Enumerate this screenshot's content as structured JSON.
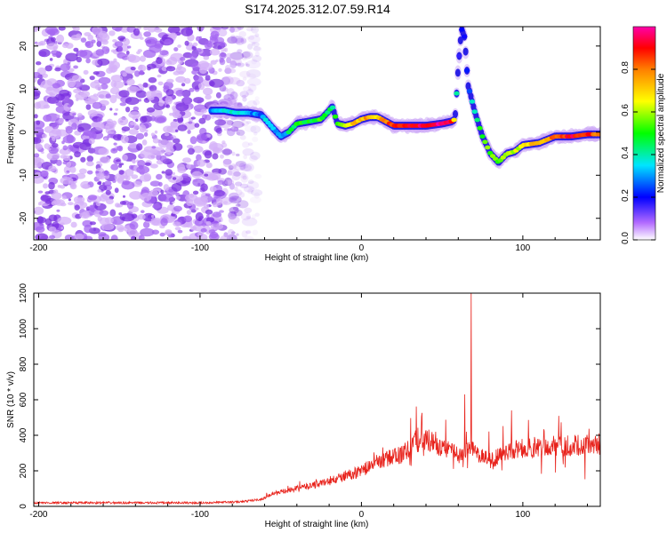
{
  "title": "S174.2025.312.07.59.R14",
  "chart_data": [
    {
      "type": "heatmap",
      "xlabel": "Height of straight line (km)",
      "ylabel": "Frequency (Hz)",
      "xlim": [
        -203,
        148
      ],
      "ylim": [
        -25,
        24.5
      ],
      "xticks": [
        -200,
        -100,
        0,
        100
      ],
      "yticks": [
        -20,
        -10,
        0,
        10,
        20
      ],
      "colorbar": {
        "label": "Normalized spectral amplitude",
        "range": [
          0,
          1
        ],
        "ticks": [
          0.0,
          0.2,
          0.4,
          0.6,
          0.8
        ],
        "tick_labels": [
          "0.0",
          "0.2",
          "0.4",
          "0.6",
          "0.8"
        ]
      },
      "noise_region_x": [
        -203,
        -75
      ],
      "ridge": {
        "x": [
          -93,
          -85,
          -78,
          -70,
          -62,
          -55,
          -50,
          -45,
          -40,
          -32,
          -25,
          -20,
          -18,
          -15,
          -10,
          -5,
          0,
          5,
          10,
          15,
          20,
          30,
          40,
          50,
          56,
          58,
          60,
          62,
          64,
          66,
          68,
          70,
          75,
          80,
          85,
          90,
          95,
          100,
          110,
          120,
          130,
          140,
          148
        ],
        "freq": [
          5,
          5,
          4.5,
          4.5,
          4,
          1,
          -1,
          0,
          2,
          2.5,
          3,
          5,
          6,
          2,
          1.5,
          2,
          3,
          3.5,
          3.5,
          2.5,
          1.5,
          1.5,
          1.5,
          2,
          2.5,
          3,
          15,
          24,
          22,
          11,
          8,
          5,
          -1,
          -5,
          -7,
          -5,
          -4.5,
          -3,
          -2.5,
          -1,
          -1,
          -0.5,
          -0.5
        ],
        "amplitude": [
          0.3,
          0.35,
          0.35,
          0.3,
          0.3,
          0.35,
          0.3,
          0.4,
          0.5,
          0.5,
          0.5,
          0.45,
          0.4,
          0.5,
          0.6,
          0.7,
          0.75,
          0.75,
          0.7,
          0.8,
          0.9,
          0.9,
          0.95,
          0.95,
          0.9,
          0.6,
          0.2,
          0.15,
          0.2,
          0.25,
          0.3,
          0.4,
          0.5,
          0.55,
          0.55,
          0.55,
          0.6,
          0.65,
          0.75,
          0.8,
          0.9,
          0.9,
          0.75
        ]
      }
    },
    {
      "type": "line",
      "xlabel": "Height of straight line (km)",
      "ylabel": "SNR (10 * v/v)",
      "xlim": [
        -203,
        148
      ],
      "ylim": [
        0,
        1200
      ],
      "xticks": [
        -200,
        -100,
        0,
        100
      ],
      "yticks": [
        0,
        200,
        400,
        600,
        800,
        1000,
        1200
      ],
      "color": "#e8221b",
      "series": [
        {
          "name": "SNR",
          "x": [
            -203,
            -150,
            -100,
            -75,
            -62,
            -55,
            -40,
            -30,
            -20,
            -10,
            0,
            10,
            20,
            25,
            30,
            40,
            50,
            60,
            65,
            68,
            70,
            72,
            75,
            80,
            90,
            100,
            110,
            120,
            130,
            140,
            148
          ],
          "y": [
            20,
            20,
            20,
            25,
            40,
            70,
            100,
            120,
            140,
            170,
            200,
            250,
            280,
            290,
            340,
            380,
            330,
            290,
            320,
            360,
            330,
            300,
            280,
            260,
            300,
            330,
            330,
            340,
            340,
            350,
            350
          ]
        }
      ],
      "spikes": [
        {
          "x": 46,
          "y": 420
        },
        {
          "x": 64,
          "y": 630
        },
        {
          "x": 68,
          "y": 1200
        },
        {
          "x": 93,
          "y": 540
        }
      ]
    }
  ]
}
